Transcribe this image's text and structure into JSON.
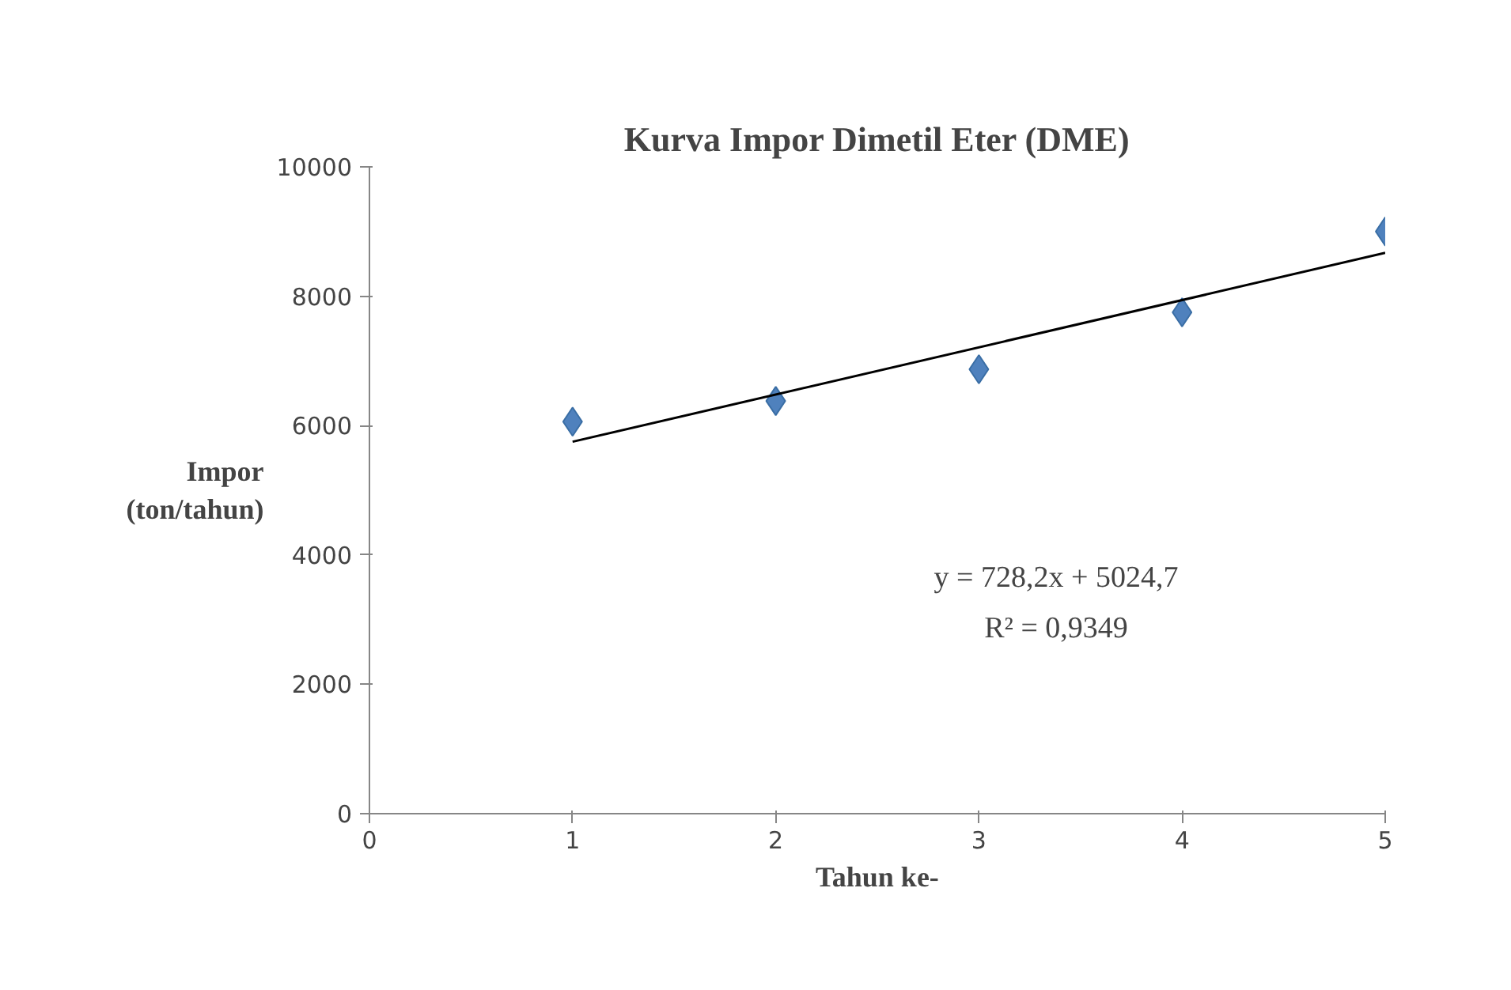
{
  "chart_data": {
    "type": "scatter",
    "title": "Kurva Impor Dimetil Eter (DME)",
    "xlabel": "Tahun ke-",
    "ylabel": "Impor (ton/tahun)",
    "x": [
      1,
      2,
      3,
      4,
      5
    ],
    "series": [
      {
        "color": "#4f81bd",
        "marker": "diamond",
        "values": [
          6060,
          6380,
          6870,
          7750,
          9000
        ]
      },
      {
        "type": "line",
        "color": "#000000",
        "x": [
          1,
          5
        ],
        "values": [
          5750,
          8670
        ],
        "marker": "none"
      }
    ],
    "xlim": [
      0,
      5
    ],
    "xticks": [
      0,
      1,
      2,
      3,
      4,
      5
    ],
    "ylim": [
      0,
      10000
    ],
    "yticks": [
      0,
      2000,
      4000,
      6000,
      8000,
      10000
    ],
    "grid": false,
    "annotations": [
      "y = 728,2x + 5024,7",
      "R² = 0,9349"
    ]
  }
}
